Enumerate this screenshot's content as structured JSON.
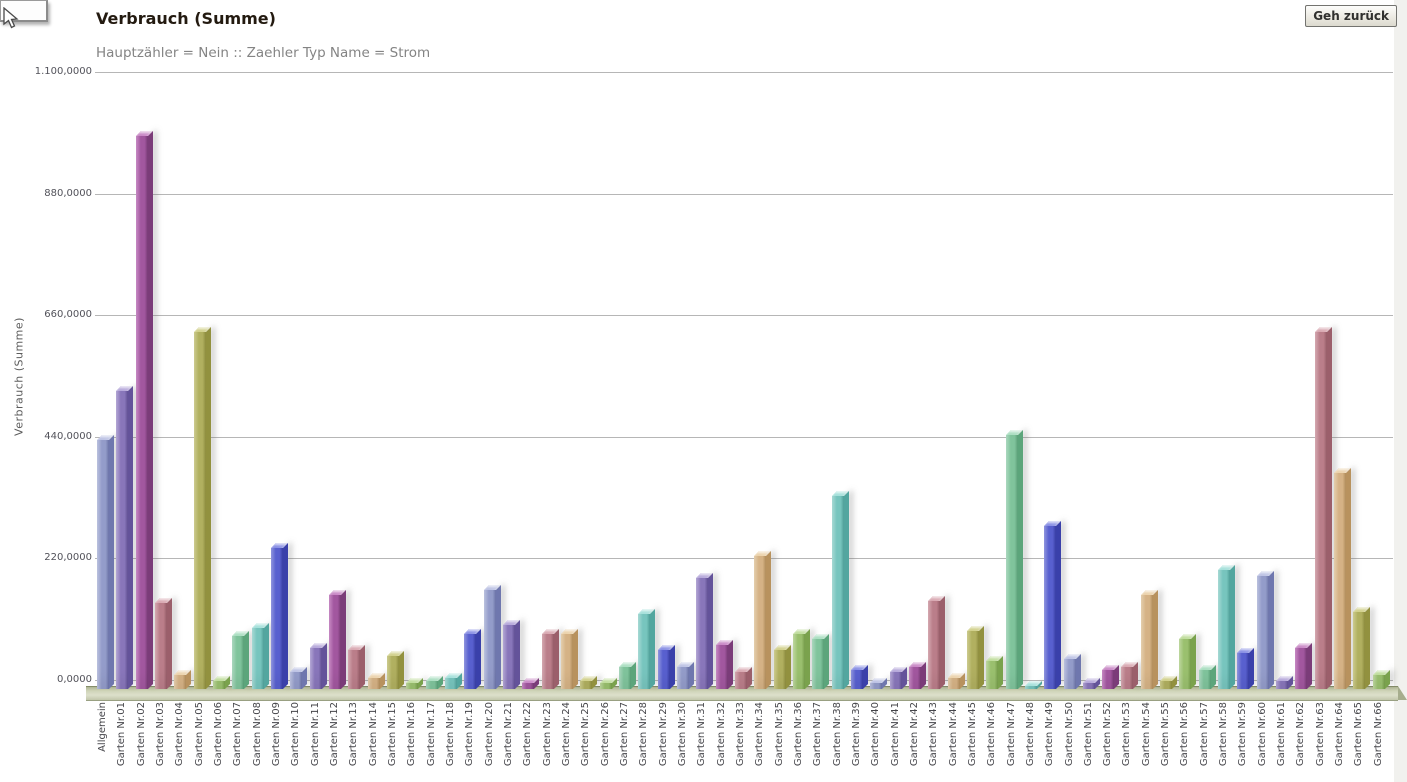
{
  "toolbar": {
    "back_button": "Geh zurück"
  },
  "chart_data": {
    "type": "bar",
    "title": "Verbrauch (Summe)",
    "subtitle": "Hauptzähler = Nein :: Zaehler Typ Name = Strom",
    "ylabel": "Verbrauch (Summe)",
    "xlabel": "",
    "ylim": [
      0,
      1100
    ],
    "grid": true,
    "legend": false,
    "ytick_values": [
      0,
      220,
      440,
      660,
      880,
      1100
    ],
    "ytick_labels": [
      "0,0000",
      "220,0000",
      "440,0000",
      "660,0000",
      "880,0000",
      "1.100,0000"
    ],
    "categories": [
      "Allgemein",
      "Garten Nr.01",
      "Garten Nr.02",
      "Garten Nr.03",
      "Garten Nr.04",
      "Garten Nr.05",
      "Garten Nr.06",
      "Garten Nr.07",
      "Garten Nr.08",
      "Garten Nr.09",
      "Garten Nr.10",
      "Garten Nr.11",
      "Garten Nr.12",
      "Garten Nr.13",
      "Garten Nr.14",
      "Garten Nr.15",
      "Garten Nr.16",
      "Garten Nr.17",
      "Garten Nr.18",
      "Garten Nr.19",
      "Garten Nr.20",
      "Garten Nr.21",
      "Garten Nr.22",
      "Garten Nr.23",
      "Garten Nr.24",
      "Garten Nr.25",
      "Garten Nr.26",
      "Garten Nr.27",
      "Garten Nr.28",
      "Garten Nr.29",
      "Garten Nr.30",
      "Garten Nr.31",
      "Garten Nr.32",
      "Garten Nr.33",
      "Garten Nr.34",
      "Garten Nr.35",
      "Garten Nr.36",
      "Garten Nr.37",
      "Garten Nr.38",
      "Garten Nr.39",
      "Garten Nr.40",
      "Garten Nr.41",
      "Garten Nr.42",
      "Garten Nr.43",
      "Garten Nr.44",
      "Garten Nr.45",
      "Garten Nr.46",
      "Garten Nr.47",
      "Garten Nr.48",
      "Garten Nr.49",
      "Garten Nr.50",
      "Garten Nr.51",
      "Garten Nr.52",
      "Garten Nr.53",
      "Garten Nr.54",
      "Garten Nr.55",
      "Garten Nr.56",
      "Garten Nr.57",
      "Garten Nr.58",
      "Garten Nr.59",
      "Garten Nr.60",
      "Garten Nr.61",
      "Garten Nr.62",
      "Garten Nr.63",
      "Garten Nr.64",
      "Garten Nr.65",
      "Garten Nr.66"
    ],
    "values": [
      450,
      540,
      1000,
      155,
      25,
      645,
      15,
      95,
      110,
      255,
      30,
      75,
      170,
      70,
      20,
      60,
      10,
      15,
      20,
      100,
      180,
      115,
      10,
      100,
      100,
      15,
      10,
      40,
      135,
      70,
      40,
      200,
      80,
      30,
      240,
      70,
      100,
      90,
      350,
      35,
      10,
      30,
      40,
      160,
      20,
      105,
      50,
      460,
      5,
      295,
      55,
      10,
      35,
      40,
      170,
      15,
      90,
      35,
      215,
      65,
      205,
      15,
      75,
      645,
      390,
      140,
      25
    ],
    "palette_cycle": [
      {
        "name": "periwinkle",
        "front": "#98a1d0",
        "light": "#c3c9e8",
        "side": "#6f77ae",
        "top": "#b9bfe2"
      },
      {
        "name": "purple",
        "front": "#8d7ac0",
        "light": "#bcaede",
        "side": "#64539a",
        "top": "#b2a4d8"
      },
      {
        "name": "magenta",
        "front": "#a75aa4",
        "light": "#cf8fcc",
        "side": "#7b3c79",
        "top": "#c585c2"
      },
      {
        "name": "rose",
        "front": "#c0828e",
        "light": "#ddafb8",
        "side": "#9b5f6b",
        "top": "#d6a4ad"
      },
      {
        "name": "tan",
        "front": "#dcb88a",
        "light": "#eed7b4",
        "side": "#b8925e",
        "top": "#ead0a8"
      },
      {
        "name": "olive",
        "front": "#b6b563",
        "light": "#d5d494",
        "side": "#92913f",
        "top": "#cfce86"
      },
      {
        "name": "green",
        "front": "#9fc672",
        "light": "#c6e0a6",
        "side": "#7aa24d",
        "top": "#bcdb97"
      },
      {
        "name": "seagreen",
        "front": "#84caa1",
        "light": "#b2e0c6",
        "side": "#5ca57b",
        "top": "#a6ddbe"
      },
      {
        "name": "turquoise",
        "front": "#7bcbc4",
        "light": "#aee2dd",
        "side": "#53a69f",
        "top": "#a0dfd9"
      },
      {
        "name": "royalblue",
        "front": "#5b63d5",
        "light": "#959be7",
        "side": "#3a40aa",
        "top": "#8188e3"
      }
    ],
    "base_color": "#cfd4b8",
    "gridline_color": "#b6b6b6"
  }
}
